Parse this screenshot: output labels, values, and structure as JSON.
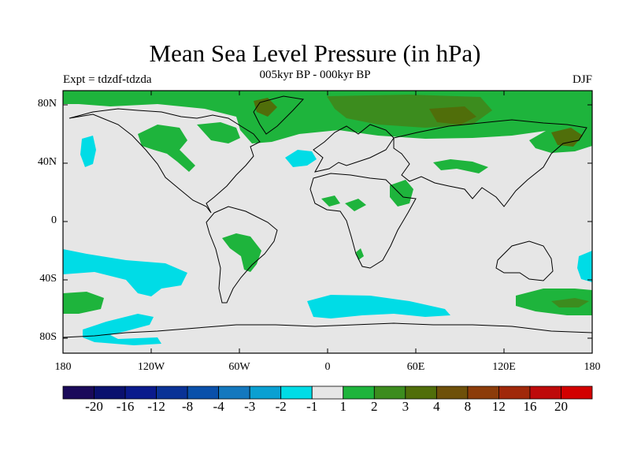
{
  "title": "Mean Sea Level Pressure (in hPa)",
  "subtitle": "005kyr BP - 000kyr BP",
  "experiment_label": "Expt = tdzdf-tdzda",
  "season_label": "DJF",
  "map": {
    "projection": "cylindrical equidistant",
    "lon_range": [
      -180,
      180
    ],
    "lat_range": [
      -90,
      90
    ],
    "background_color": "#e6e6e6",
    "coastline_color": "#000000",
    "y_ticks": [
      "80N",
      "40N",
      "0",
      "40S",
      "80S"
    ],
    "x_ticks": [
      "180",
      "120W",
      "60W",
      "0",
      "60E",
      "120E",
      "180"
    ]
  },
  "colorbar": {
    "colors": [
      "#1a0a5a",
      "#0a106e",
      "#0a1a8c",
      "#0a3296",
      "#0a50aa",
      "#1478be",
      "#0aa0d2",
      "#00dce6",
      "#e6e6e6",
      "#1eb43c",
      "#3c8c1e",
      "#506e0a",
      "#6e500a",
      "#8c3c0a",
      "#a0280a",
      "#be0a0a",
      "#d20000"
    ],
    "tick_labels": [
      "-20",
      "-16",
      "-12",
      "-8",
      "-4",
      "-3",
      "-2",
      "-1",
      "1",
      "2",
      "3",
      "4",
      "8",
      "12",
      "16",
      "20"
    ]
  },
  "shading_legend": {
    "cyan": "-2 to -1",
    "light_green": "1 to 2",
    "dark_green": "2 to 3",
    "olive": "3 to 4"
  }
}
